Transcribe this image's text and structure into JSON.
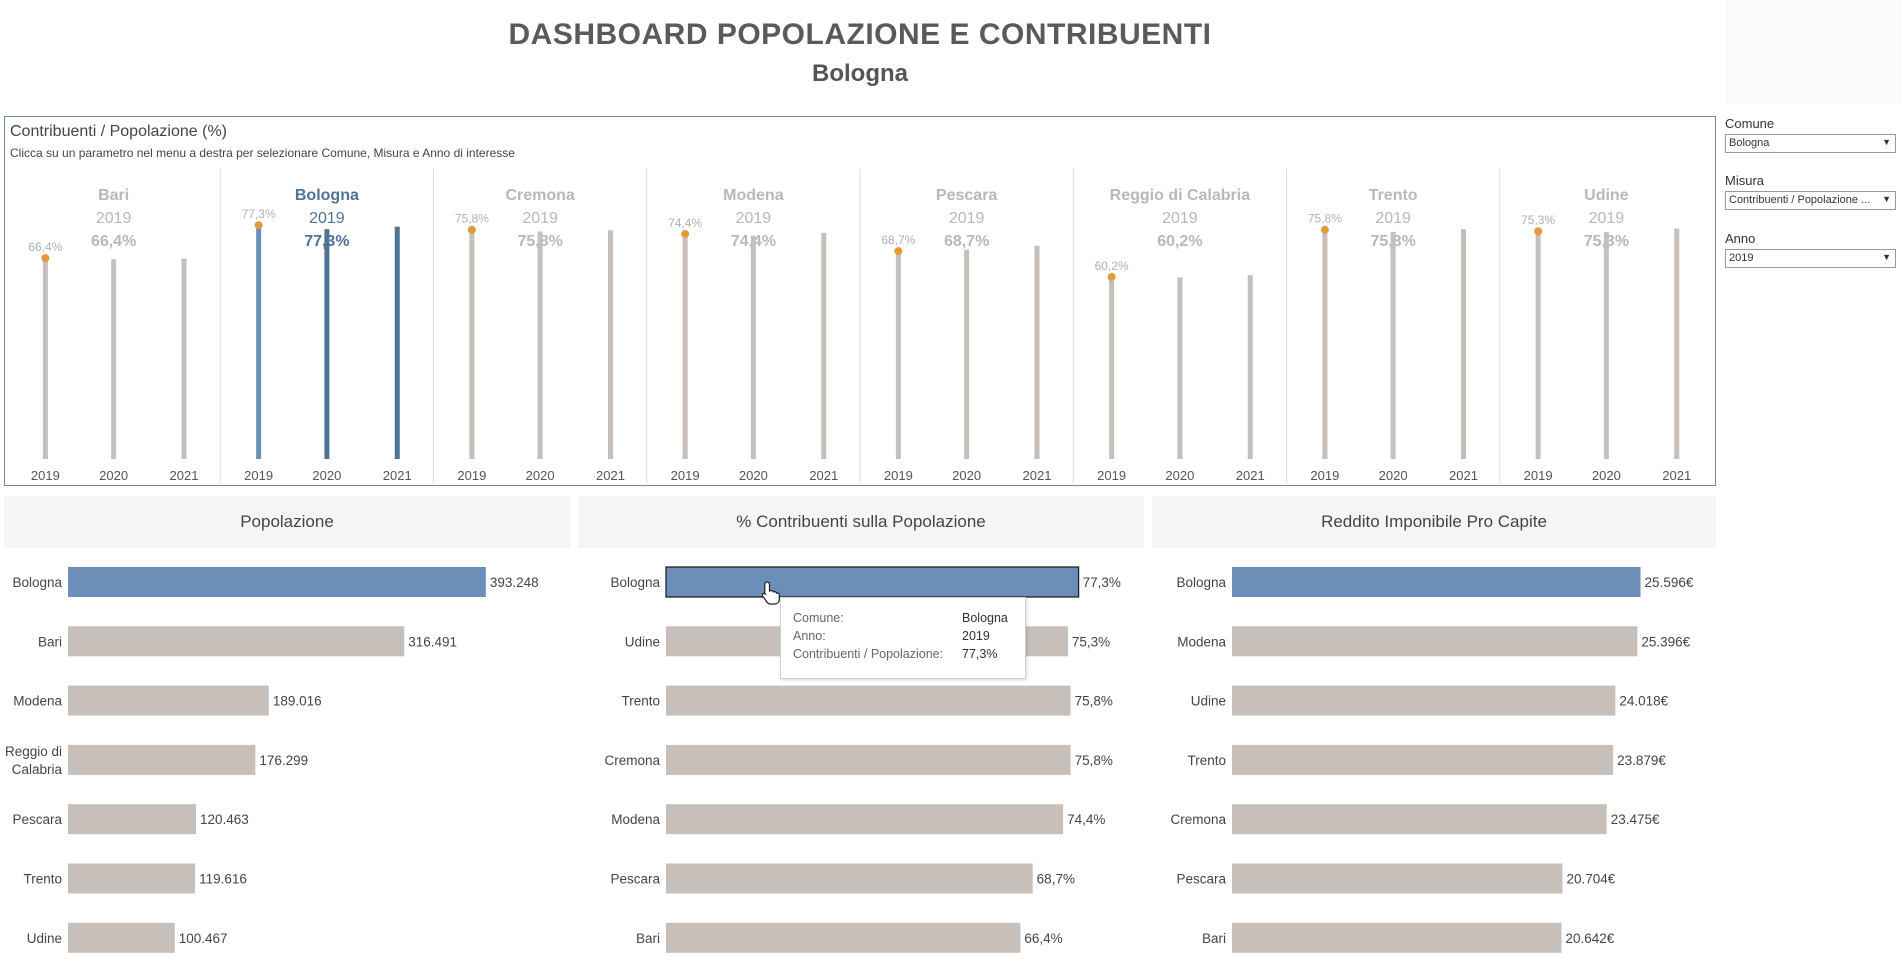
{
  "dashboard": {
    "title": "DASHBOARD POPOLAZIONE E CONTRIBUENTI",
    "subtitle": "Bologna"
  },
  "top_panel": {
    "title": "Contribuenti / Popolazione (%)",
    "subtitle": "Clicca su un parametro nel menu a destra per selezionare Comune, Misura e Anno di interesse"
  },
  "filters": {
    "comune": {
      "label": "Comune",
      "value": "Bologna"
    },
    "misura": {
      "label": "Misura",
      "value": "Contribuenti / Popolazione ..."
    },
    "anno": {
      "label": "Anno",
      "value": "2019"
    }
  },
  "panels": {
    "popolazione": "Popolazione",
    "contribuenti": "% Contribuenti sulla Popolazione",
    "reddito": "Reddito Imponibile Pro Capite"
  },
  "tooltip": {
    "comune_label": "Comune:",
    "comune_value": "Bologna",
    "anno_label": "Anno:",
    "anno_value": "2019",
    "misura_label": "Contribuenti / Popolazione:",
    "misura_value": "77,3%"
  },
  "colors": {
    "highlight": "#6b8fb8",
    "highlight_dark": "#4f7396",
    "default": "#c6bfba",
    "dot": "#e49a3c",
    "header_text_dim": "#b8b8b8"
  },
  "chart_data": [
    {
      "type": "bar",
      "title": "Contribuenti / Popolazione (%)",
      "selected": "Bologna",
      "selected_year": "2019",
      "ylim": [
        0,
        80
      ],
      "cities": [
        {
          "name": "Bari",
          "year": "2019",
          "header_value": "66,4%",
          "label": "66,4%",
          "years": [
            "2019",
            "2020",
            "2021"
          ],
          "values": [
            66.4,
            66.0,
            66.2
          ]
        },
        {
          "name": "Bologna",
          "year": "2019",
          "header_value": "77,3%",
          "label": "77,3%",
          "years": [
            "2019",
            "2020",
            "2021"
          ],
          "values": [
            77.3,
            76.0,
            76.8
          ]
        },
        {
          "name": "Cremona",
          "year": "2019",
          "header_value": "75,8%",
          "label": "75,8%",
          "years": [
            "2019",
            "2020",
            "2021"
          ],
          "values": [
            75.8,
            75.2,
            75.6
          ]
        },
        {
          "name": "Modena",
          "year": "2019",
          "header_value": "74,4%",
          "label": "74,4%",
          "years": [
            "2019",
            "2020",
            "2021"
          ],
          "values": [
            74.4,
            73.8,
            74.8
          ]
        },
        {
          "name": "Pescara",
          "year": "2019",
          "header_value": "68,7%",
          "label": "68,7%",
          "years": [
            "2019",
            "2020",
            "2021"
          ],
          "values": [
            68.7,
            69.2,
            70.5
          ]
        },
        {
          "name": "Reggio di Calabria",
          "year": "2019",
          "header_value": "60,2%",
          "label": "60,2%",
          "years": [
            "2019",
            "2020",
            "2021"
          ],
          "values": [
            60.2,
            60.0,
            60.8
          ]
        },
        {
          "name": "Trento",
          "year": "2019",
          "header_value": "75,8%",
          "label": "75,8%",
          "years": [
            "2019",
            "2020",
            "2021"
          ],
          "values": [
            75.8,
            75.1,
            76.0
          ]
        },
        {
          "name": "Udine",
          "year": "2019",
          "header_value": "75,3%",
          "label": "75,3%",
          "years": [
            "2019",
            "2020",
            "2021"
          ],
          "values": [
            75.3,
            75.0,
            76.2
          ]
        }
      ]
    },
    {
      "type": "bar",
      "title": "Popolazione",
      "orientation": "horizontal",
      "categories": [
        "Bologna",
        "Bari",
        "Modena",
        "Reggio di Calabria",
        "Pescara",
        "Trento",
        "Udine"
      ],
      "category_lines": [
        [
          "Bologna"
        ],
        [
          "Bari"
        ],
        [
          "Modena"
        ],
        [
          "Reggio di",
          "Calabria"
        ],
        [
          "Pescara"
        ],
        [
          "Trento"
        ],
        [
          "Udine"
        ]
      ],
      "values": [
        393248,
        316491,
        189016,
        176299,
        120463,
        119616,
        100467
      ],
      "labels": [
        "393.248",
        "316.491",
        "189.016",
        "176.299",
        "120.463",
        "119.616",
        "100.467"
      ],
      "highlight": "Bologna",
      "xlim": [
        0,
        400000
      ]
    },
    {
      "type": "bar",
      "title": "% Contribuenti sulla Popolazione",
      "orientation": "horizontal",
      "categories": [
        "Bologna",
        "Udine",
        "Trento",
        "Cremona",
        "Modena",
        "Pescara",
        "Bari"
      ],
      "category_lines": [
        [
          "Bologna"
        ],
        [
          "Udine"
        ],
        [
          "Trento"
        ],
        [
          "Cremona"
        ],
        [
          "Modena"
        ],
        [
          "Pescara"
        ],
        [
          "Bari"
        ]
      ],
      "values": [
        77.3,
        75.3,
        75.8,
        75.8,
        74.4,
        68.7,
        66.4
      ],
      "labels": [
        "77,3%",
        "75,3%",
        "75,8%",
        "75,8%",
        "74,4%",
        "68,7%",
        "66,4%"
      ],
      "highlight": "Bologna",
      "xlim": [
        0,
        80
      ]
    },
    {
      "type": "bar",
      "title": "Reddito Imponibile Pro Capite",
      "orientation": "horizontal",
      "categories": [
        "Bologna",
        "Modena",
        "Udine",
        "Trento",
        "Cremona",
        "Pescara",
        "Bari"
      ],
      "category_lines": [
        [
          "Bologna"
        ],
        [
          "Modena"
        ],
        [
          "Udine"
        ],
        [
          "Trento"
        ],
        [
          "Cremona"
        ],
        [
          "Pescara"
        ],
        [
          "Bari"
        ]
      ],
      "values": [
        25596,
        25396,
        24018,
        23879,
        23475,
        20704,
        20642
      ],
      "labels": [
        "25.596€",
        "25.396€",
        "24.018€",
        "23.879€",
        "23.475€",
        "20.704€",
        "20.642€"
      ],
      "highlight": "Bologna",
      "xlim": [
        0,
        26000
      ]
    }
  ]
}
